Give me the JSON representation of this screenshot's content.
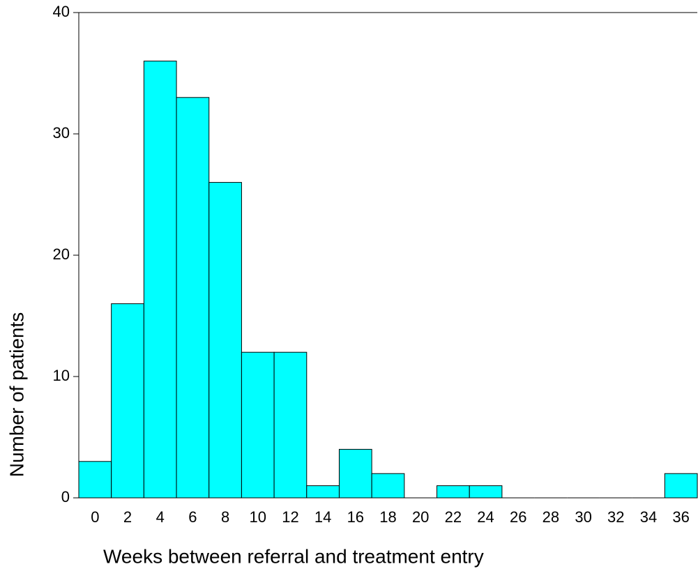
{
  "chart_data": {
    "type": "bar",
    "x_label": "Weeks between referral and treatment entry",
    "y_label": "Number of patients",
    "categories": [
      "0",
      "2",
      "4",
      "6",
      "8",
      "10",
      "12",
      "14",
      "16",
      "18",
      "20",
      "22",
      "24",
      "26",
      "28",
      "30",
      "32",
      "34",
      "36"
    ],
    "values": [
      3,
      16,
      36,
      33,
      26,
      12,
      12,
      1,
      4,
      2,
      0,
      1,
      1,
      0,
      0,
      0,
      0,
      0,
      2
    ],
    "color": "#00ffff",
    "ylim": [
      0,
      40
    ],
    "yticks": [
      0,
      10,
      20,
      30,
      40
    ]
  }
}
